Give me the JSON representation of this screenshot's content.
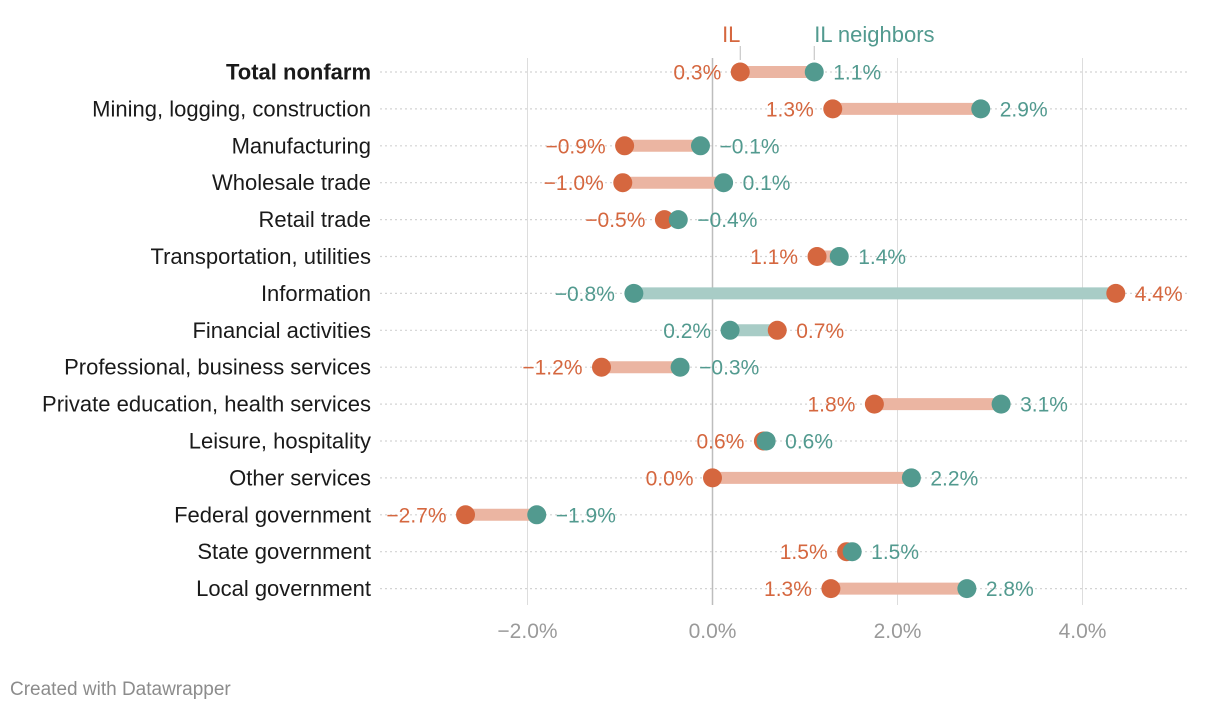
{
  "chart_data": {
    "type": "dumbbell",
    "series": [
      {
        "name": "IL",
        "color": "#d5673f"
      },
      {
        "name": "IL neighbors",
        "color": "#529a8f"
      }
    ],
    "categories": [
      {
        "label": "Total nonfarm",
        "bold": true,
        "il": 0.3,
        "il_text": "0.3%",
        "nb": 1.1,
        "nb_text": "1.1%"
      },
      {
        "label": "Mining, logging, construction",
        "il": 1.3,
        "il_text": "1.3%",
        "nb": 2.9,
        "nb_text": "2.9%"
      },
      {
        "label": "Manufacturing",
        "il": -0.95,
        "il_text": "−0.9%",
        "nb": -0.13,
        "nb_text": "−0.1%"
      },
      {
        "label": "Wholesale trade",
        "il": -0.97,
        "il_text": "−1.0%",
        "nb": 0.12,
        "nb_text": "0.1%"
      },
      {
        "label": "Retail trade",
        "il": -0.52,
        "il_text": "−0.5%",
        "nb": -0.37,
        "nb_text": "−0.4%"
      },
      {
        "label": "Transportation, utilities",
        "il": 1.13,
        "il_text": "1.1%",
        "nb": 1.37,
        "nb_text": "1.4%"
      },
      {
        "label": "Information",
        "il": 4.36,
        "il_text": "4.4%",
        "nb": -0.85,
        "nb_text": "−0.8%"
      },
      {
        "label": "Financial activities",
        "il": 0.7,
        "il_text": "0.7%",
        "nb": 0.19,
        "nb_text": "0.2%"
      },
      {
        "label": "Professional, business services",
        "il": -1.2,
        "il_text": "−1.2%",
        "nb": -0.35,
        "nb_text": "−0.3%"
      },
      {
        "label": "Private education, health services",
        "il": 1.75,
        "il_text": "1.8%",
        "nb": 3.12,
        "nb_text": "3.1%"
      },
      {
        "label": "Leisure, hospitality",
        "il": 0.55,
        "il_text": "0.6%",
        "nb": 0.58,
        "nb_text": "0.6%"
      },
      {
        "label": "Other services",
        "il": 0.0,
        "il_text": "0.0%",
        "nb": 2.15,
        "nb_text": "2.2%"
      },
      {
        "label": "Federal government",
        "il": -2.67,
        "il_text": "−2.7%",
        "nb": -1.9,
        "nb_text": "−1.9%"
      },
      {
        "label": "State government",
        "il": 1.45,
        "il_text": "1.5%",
        "nb": 1.51,
        "nb_text": "1.5%"
      },
      {
        "label": "Local government",
        "il": 1.28,
        "il_text": "1.3%",
        "nb": 2.75,
        "nb_text": "2.8%"
      }
    ],
    "x_ticks": [
      {
        "value": -2,
        "label": "−2.0%"
      },
      {
        "value": 0,
        "label": "0.0%"
      },
      {
        "value": 2,
        "label": "2.0%"
      },
      {
        "value": 4,
        "label": "4.0%"
      }
    ],
    "xlim": [
      -3.5,
      5.1
    ],
    "grid": true,
    "legend": "top"
  },
  "colors": {
    "il": "#d5673f",
    "il_bar": "#ebb5a2",
    "nb": "#529a8f",
    "nb_bar": "#a8ccc6",
    "grid": "#dddddd",
    "zero": "#bdbdbd",
    "dots": "#d3d3d3",
    "tick": "#9a9a9a"
  },
  "credit": "Created with Datawrapper"
}
